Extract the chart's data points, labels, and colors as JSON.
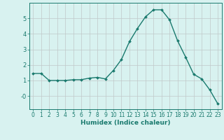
{
  "x": [
    0,
    1,
    2,
    3,
    4,
    5,
    6,
    7,
    8,
    9,
    10,
    11,
    12,
    13,
    14,
    15,
    16,
    17,
    18,
    19,
    20,
    21,
    22,
    23
  ],
  "y": [
    1.45,
    1.45,
    1.0,
    1.0,
    1.0,
    1.05,
    1.05,
    1.15,
    1.2,
    1.1,
    1.65,
    2.35,
    3.5,
    4.35,
    5.1,
    5.55,
    5.55,
    4.9,
    3.55,
    2.5,
    1.4,
    1.1,
    0.4,
    -0.5
  ],
  "line_color": "#1a7a6e",
  "marker": "D",
  "markersize": 2.0,
  "linewidth": 1.0,
  "bg_color": "#d8f2f0",
  "grid_color": "#c0c8c8",
  "axis_color": "#1a7a6e",
  "xlabel": "Humidex (Indice chaleur)",
  "xlabel_fontsize": 6.5,
  "ytick_positions": [
    0,
    1,
    2,
    3,
    4,
    5
  ],
  "ytick_labels": [
    "-0",
    "1",
    "2",
    "3",
    "4",
    "5"
  ],
  "ylim": [
    -0.85,
    6.0
  ],
  "xlim": [
    -0.5,
    23.5
  ],
  "xtick_labels": [
    "0",
    "1",
    "2",
    "3",
    "4",
    "5",
    "6",
    "7",
    "8",
    "9",
    "10",
    "11",
    "12",
    "13",
    "14",
    "15",
    "16",
    "17",
    "18",
    "19",
    "20",
    "21",
    "22",
    "23"
  ],
  "tick_fontsize": 5.5
}
